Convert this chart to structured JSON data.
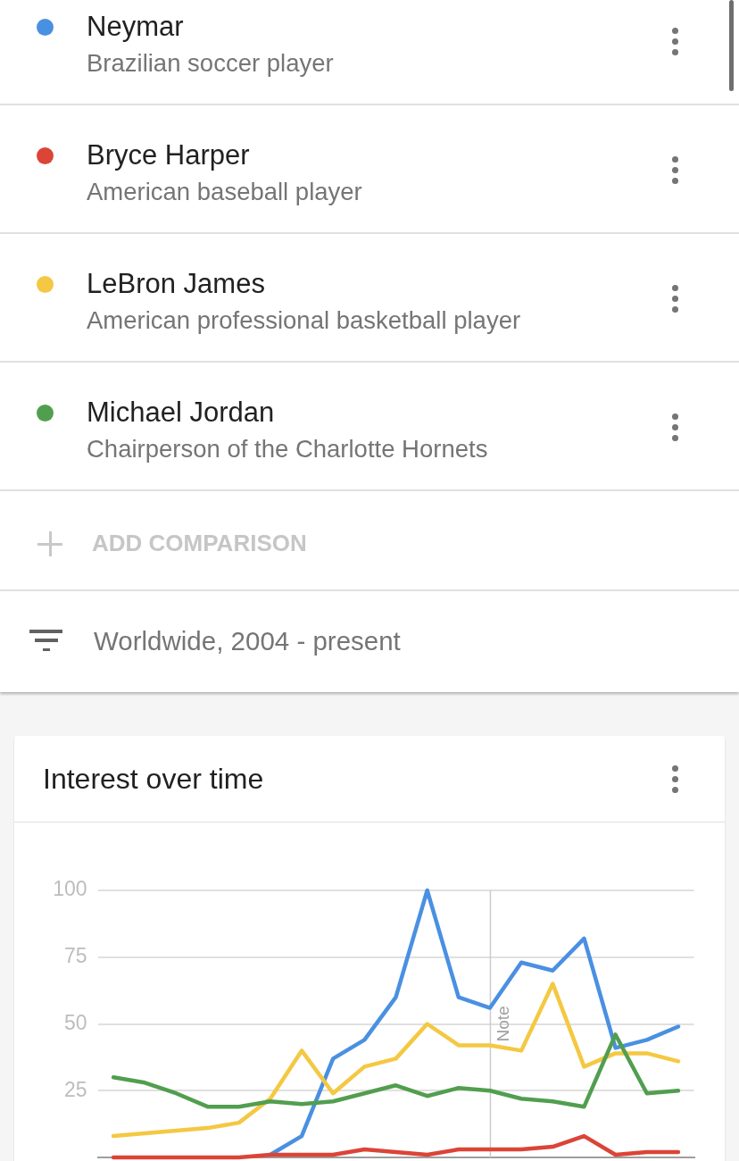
{
  "chart_data": {
    "type": "line",
    "title": "Interest over time",
    "subtitle": "Worldwide, 2004 - present",
    "categories": [
      null,
      null,
      null,
      null,
      null,
      null,
      null,
      null,
      null,
      null,
      null,
      null,
      null,
      null,
      null,
      null,
      null,
      null,
      null
    ],
    "series": [
      {
        "name": "Neymar",
        "color": "#4a90e2",
        "values": [
          null,
          null,
          null,
          null,
          null,
          1,
          8,
          37,
          44,
          60,
          100,
          60,
          56,
          73,
          70,
          82,
          41,
          44,
          49
        ]
      },
      {
        "name": "Bryce Harper",
        "color": "#db4437",
        "values": [
          0,
          0,
          0,
          0,
          0,
          1,
          1,
          1,
          3,
          2,
          1,
          3,
          3,
          3,
          4,
          8,
          1,
          2,
          2
        ]
      },
      {
        "name": "LeBron James",
        "color": "#f4c842",
        "values": [
          8,
          9,
          10,
          11,
          13,
          22,
          40,
          24,
          34,
          37,
          50,
          42,
          42,
          40,
          65,
          34,
          39,
          39,
          36
        ]
      },
      {
        "name": "Michael Jordan",
        "color": "#519e4f",
        "values": [
          30,
          28,
          24,
          19,
          19,
          21,
          20,
          21,
          24,
          27,
          23,
          26,
          25,
          22,
          21,
          19,
          46,
          24,
          25
        ]
      }
    ],
    "ylim": [
      0,
      100
    ],
    "yticks": [
      25,
      50,
      75,
      100
    ],
    "grid": "y",
    "legend": "top",
    "tick_labels": "y",
    "marker": "none",
    "line_style": "solid",
    "annotations": [
      "Brazilian soccer player",
      "American baseball player",
      "American professional basketball player",
      "Chairperson of the Charlotte Hornets",
      "ADD COMPARISON",
      "Note"
    ]
  }
}
